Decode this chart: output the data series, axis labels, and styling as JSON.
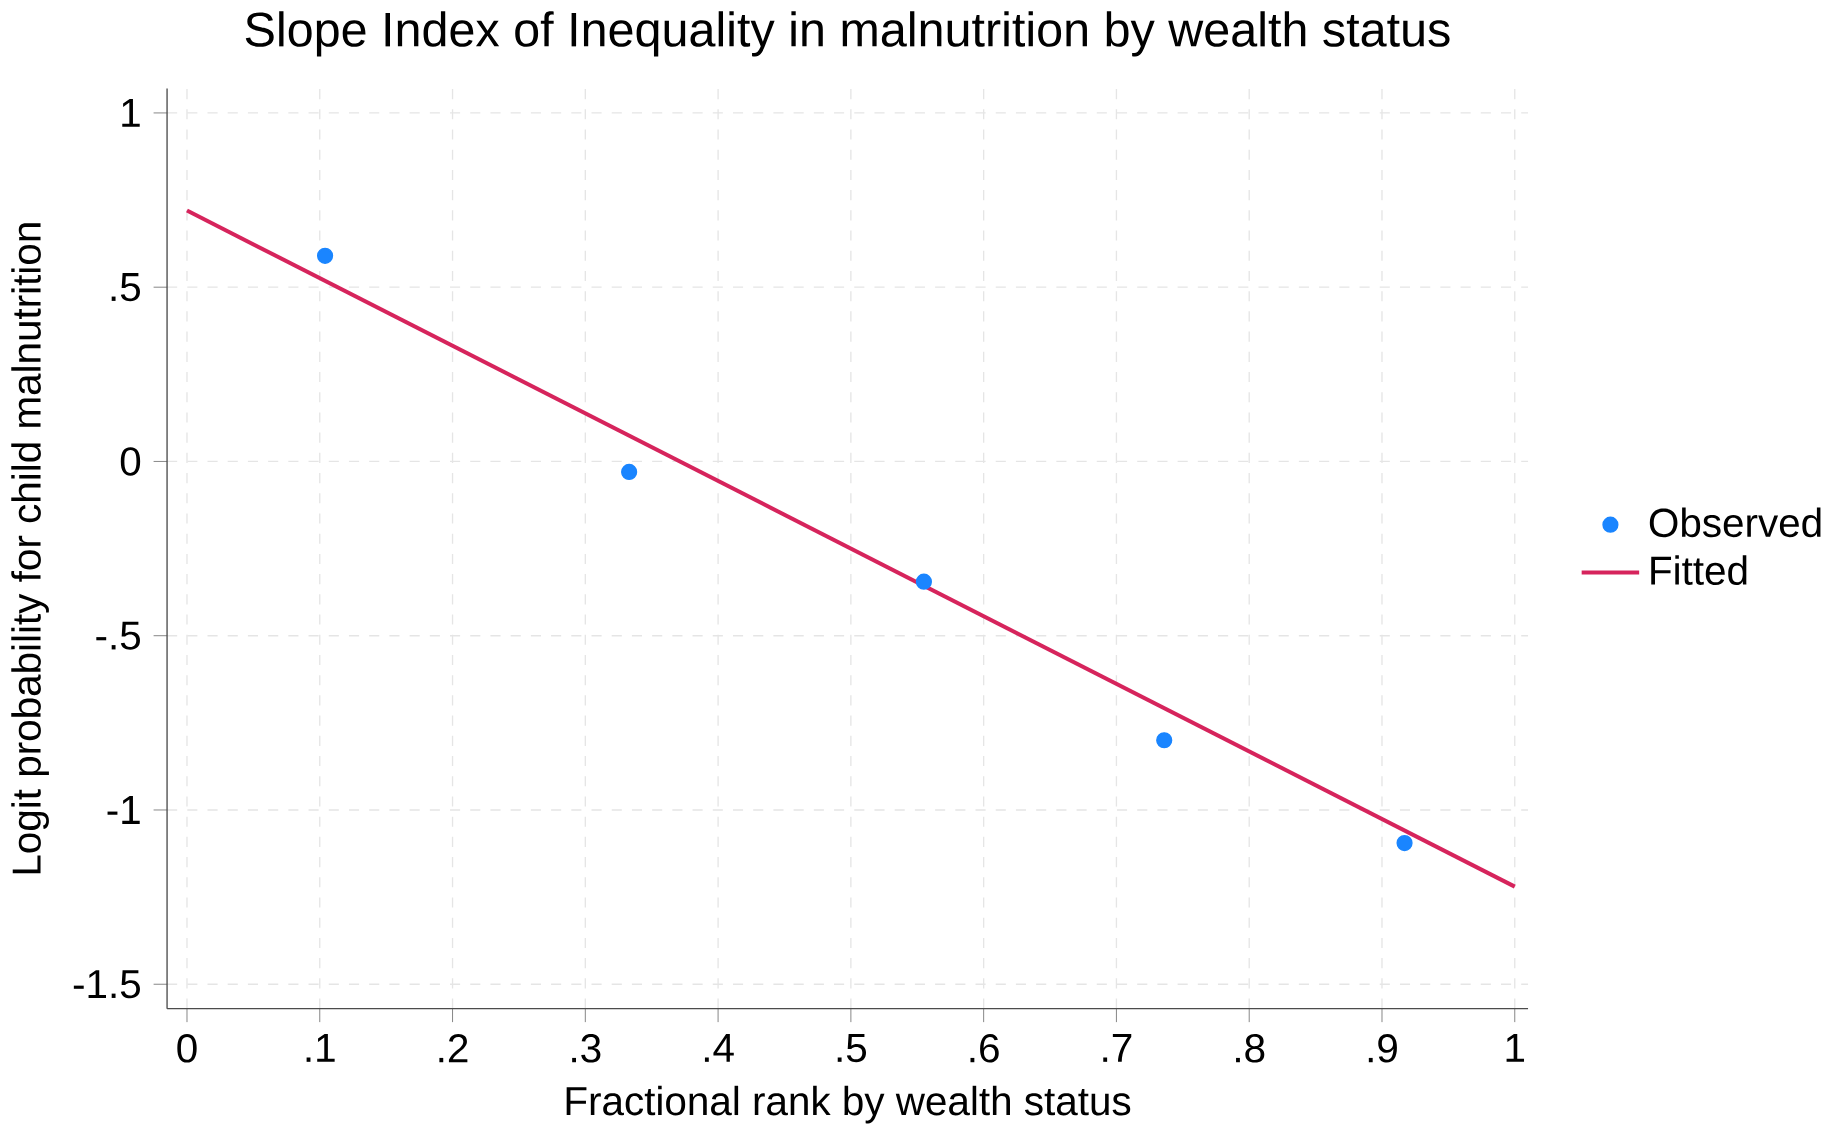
{
  "chart_data": {
    "type": "scatter",
    "title": "Slope Index of Inequality in malnutrition by wealth status",
    "xlabel": "Fractional rank by wealth status",
    "ylabel": "Logit probability for child malnutrition",
    "xlim": [
      -0.015,
      1.01
    ],
    "ylim": [
      -1.57,
      1.07
    ],
    "xticks": [
      0,
      {
        "value": 0.1,
        "label": ".1"
      },
      {
        "value": 0.2,
        "label": ".2"
      },
      {
        "value": 0.3,
        "label": ".3"
      },
      {
        "value": 0.4,
        "label": ".4"
      },
      {
        "value": 0.5,
        "label": ".5"
      },
      {
        "value": 0.6,
        "label": ".6"
      },
      {
        "value": 0.7,
        "label": ".7"
      },
      {
        "value": 0.8,
        "label": ".8"
      },
      {
        "value": 0.9,
        "label": ".9"
      },
      1
    ],
    "yticks": [
      {
        "value": -1.5,
        "label": "-1.5"
      },
      -1,
      {
        "value": -0.5,
        "label": "-.5"
      },
      0,
      {
        "value": 0.5,
        "label": ".5"
      },
      1
    ],
    "grid": true,
    "legend": "right",
    "series": [
      {
        "name": "Observed",
        "marker": "circle",
        "color": "#1a85ff",
        "x": [
          0.104,
          0.333,
          0.555,
          0.736,
          0.917
        ],
        "values": [
          0.59,
          -0.03,
          -0.345,
          -0.8,
          -1.095
        ]
      },
      {
        "name": "Fitted",
        "type": "line",
        "marker": "none",
        "line_style": "solid",
        "color": "#d6245c",
        "x": [
          0,
          1
        ],
        "values": [
          0.72,
          -1.22
        ]
      }
    ]
  }
}
